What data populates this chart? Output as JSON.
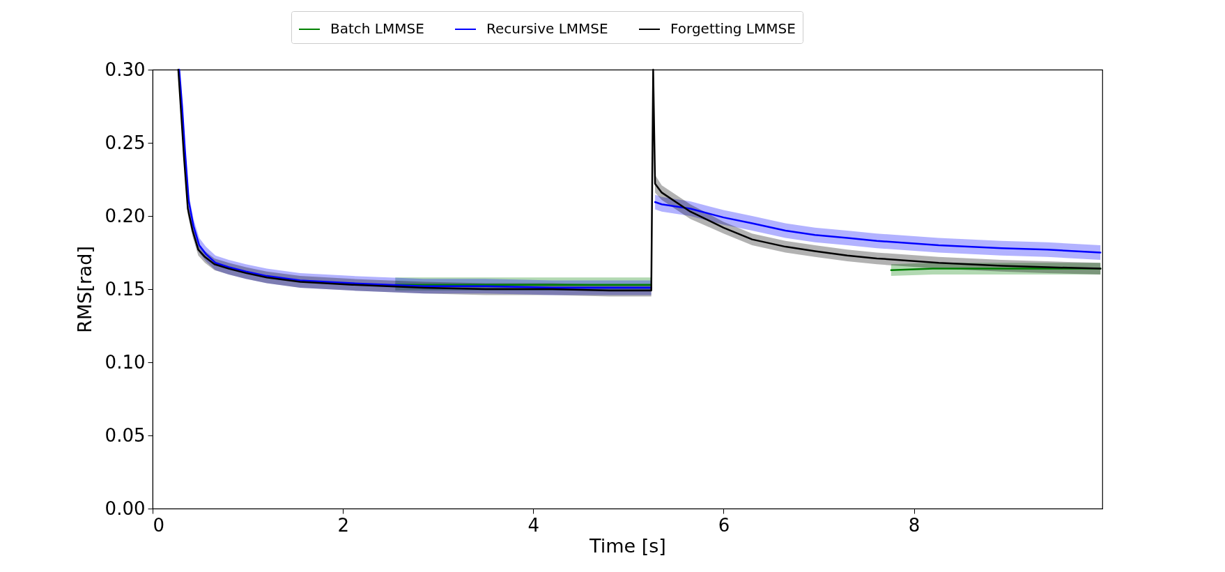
{
  "chart_data": {
    "type": "line",
    "xlabel": "Time [s]",
    "ylabel": "RMS[rad]",
    "xlim": [
      0,
      9.98
    ],
    "ylim": [
      0,
      0.3
    ],
    "xticks": [
      0,
      2,
      4,
      6,
      8
    ],
    "yticks": [
      {
        "value": 0,
        "label": "0.00"
      },
      0.05,
      {
        "value": 0.1,
        "label": "0.10"
      },
      0.15,
      {
        "value": 0.2,
        "label": "0.20"
      },
      0.25,
      {
        "value": 0.3,
        "label": "0.30"
      }
    ],
    "grid": false,
    "legend": "top",
    "line_style": "solid",
    "series": [
      {
        "name": "Batch LMMSE",
        "color": "#008000",
        "x": [
          2.55,
          3.0,
          3.5,
          4.0,
          4.5,
          5.0,
          5.24,
          6.5,
          7.76,
          8.2,
          8.7,
          9.2,
          9.6,
          9.96
        ],
        "values": [
          0.153,
          0.153,
          0.153,
          0.153,
          0.153,
          0.153,
          0.153,
          null,
          0.163,
          0.164,
          0.164,
          0.164,
          0.164,
          0.164
        ],
        "lower": [
          0.149,
          0.149,
          0.149,
          0.149,
          0.149,
          0.149,
          0.149,
          null,
          0.159,
          0.16,
          0.16,
          0.16,
          0.16,
          0.16
        ],
        "upper": [
          0.158,
          0.158,
          0.158,
          0.158,
          0.158,
          0.158,
          0.158,
          null,
          0.167,
          0.168,
          0.168,
          0.168,
          0.168,
          0.168
        ]
      },
      {
        "name": "Recursive LMMSE",
        "color": "#0000ff",
        "x": [
          0.28,
          0.31,
          0.34,
          0.38,
          0.43,
          0.49,
          0.56,
          0.66,
          0.8,
          0.98,
          1.2,
          1.55,
          2.1,
          2.85,
          3.5,
          4.2,
          4.8,
          5.24,
          5.26,
          5.28,
          5.35,
          5.65,
          6.0,
          6.3,
          6.65,
          6.96,
          7.3,
          7.61,
          8.26,
          8.92,
          9.4,
          9.96
        ],
        "values": [
          0.3,
          0.275,
          0.245,
          0.21,
          0.193,
          0.18,
          0.174,
          0.168,
          0.165,
          0.162,
          0.159,
          0.156,
          0.154,
          0.152,
          0.152,
          0.151,
          0.151,
          0.151,
          null,
          0.2095,
          0.208,
          0.205,
          0.199,
          0.195,
          0.19,
          0.187,
          0.185,
          0.183,
          0.18,
          0.178,
          0.177,
          0.175
        ],
        "lower": [
          0.295,
          0.27,
          0.24,
          0.205,
          0.188,
          0.175,
          0.169,
          0.163,
          0.16,
          0.157,
          0.154,
          0.151,
          0.149,
          0.147,
          0.147,
          0.146,
          0.146,
          0.146,
          null,
          0.2045,
          0.203,
          0.2,
          0.194,
          0.19,
          0.185,
          0.182,
          0.18,
          0.178,
          0.175,
          0.173,
          0.172,
          0.17
        ],
        "upper": [
          0.3,
          0.28,
          0.25,
          0.215,
          0.198,
          0.185,
          0.179,
          0.173,
          0.17,
          0.167,
          0.164,
          0.161,
          0.159,
          0.157,
          0.157,
          0.156,
          0.156,
          0.156,
          null,
          0.2145,
          0.213,
          0.21,
          0.204,
          0.2,
          0.195,
          0.192,
          0.19,
          0.188,
          0.185,
          0.183,
          0.182,
          0.18
        ]
      },
      {
        "name": "Forgetting LMMSE",
        "color": "#000000",
        "x": [
          0.27,
          0.3,
          0.33,
          0.37,
          0.42,
          0.48,
          0.55,
          0.65,
          0.8,
          0.98,
          1.2,
          1.55,
          2.1,
          2.85,
          3.5,
          4.2,
          4.8,
          5.24,
          5.26,
          5.28,
          5.35,
          5.65,
          6.0,
          6.3,
          6.65,
          6.96,
          7.3,
          7.61,
          8.26,
          8.92,
          9.4,
          9.96
        ],
        "values": [
          0.3,
          0.27,
          0.24,
          0.205,
          0.19,
          0.177,
          0.172,
          0.167,
          0.164,
          0.161,
          0.158,
          0.155,
          0.153,
          0.151,
          0.15,
          0.15,
          0.149,
          0.149,
          0.3,
          0.222,
          0.216,
          0.203,
          0.192,
          0.184,
          0.179,
          0.176,
          0.173,
          0.171,
          0.168,
          0.166,
          0.165,
          0.164
        ],
        "lower": [
          0.296,
          0.266,
          0.236,
          0.201,
          0.186,
          0.173,
          0.168,
          0.163,
          0.16,
          0.157,
          0.154,
          0.151,
          0.149,
          0.147,
          0.146,
          0.146,
          0.145,
          0.145,
          0.296,
          0.216,
          0.211,
          0.198,
          0.188,
          0.18,
          0.175,
          0.172,
          0.169,
          0.167,
          0.164,
          0.162,
          0.161,
          0.16
        ],
        "upper": [
          0.3,
          0.274,
          0.244,
          0.209,
          0.194,
          0.181,
          0.176,
          0.171,
          0.168,
          0.165,
          0.162,
          0.159,
          0.157,
          0.155,
          0.154,
          0.154,
          0.153,
          0.153,
          0.3,
          0.228,
          0.221,
          0.208,
          0.196,
          0.188,
          0.183,
          0.18,
          0.177,
          0.175,
          0.172,
          0.17,
          0.169,
          0.168
        ]
      }
    ]
  }
}
